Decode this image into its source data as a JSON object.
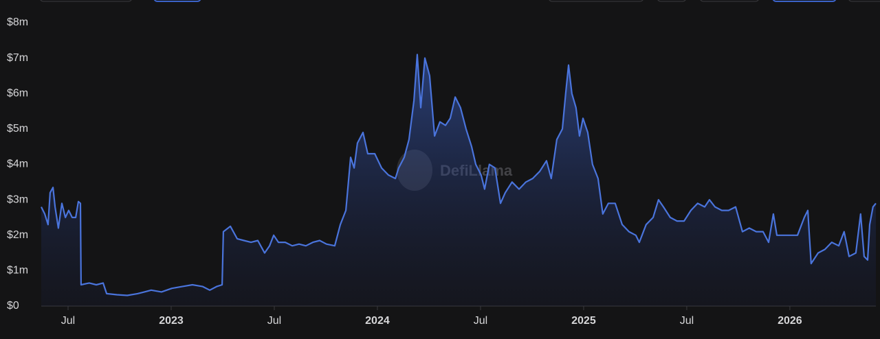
{
  "chart_data": {
    "type": "area",
    "watermark": "DefiLlama",
    "color": "#4a74dc",
    "xlim": [
      2022.37,
      2026.417
    ],
    "xticks": [
      {
        "value": 2022.5,
        "label": "Jul"
      },
      2023,
      {
        "value": 2023.5,
        "label": "Jul"
      },
      2024,
      {
        "value": 2024.5,
        "label": "Jul"
      },
      2025,
      {
        "value": 2025.5,
        "label": "Jul"
      },
      2026
    ],
    "ylim": [
      0,
      8
    ],
    "yticks": [
      {
        "value": 0,
        "label": "$0"
      },
      {
        "value": 1,
        "label": "$1m"
      },
      {
        "value": 2,
        "label": "$2m"
      },
      {
        "value": 3,
        "label": "$3m"
      },
      {
        "value": 4,
        "label": "$4m"
      },
      {
        "value": 5,
        "label": "$5m"
      },
      {
        "value": 6,
        "label": "$6m"
      },
      {
        "value": 7,
        "label": "$7m"
      },
      {
        "value": 8,
        "label": "$8m"
      }
    ],
    "x": [
      2022.37,
      2022.387,
      2022.403,
      2022.413,
      2022.427,
      2022.437,
      2022.453,
      2022.47,
      2022.487,
      2022.503,
      2022.52,
      2022.537,
      2022.55,
      2022.56,
      2022.563,
      2022.603,
      2022.637,
      2022.67,
      2022.687,
      2022.737,
      2022.787,
      2022.837,
      2022.87,
      2022.903,
      2022.953,
      2023.003,
      2023.053,
      2023.103,
      2023.153,
      2023.187,
      2023.22,
      2023.247,
      2023.253,
      2023.287,
      2023.32,
      2023.353,
      2023.387,
      2023.42,
      2023.453,
      2023.477,
      2023.497,
      2023.52,
      2023.553,
      2023.587,
      2023.62,
      2023.653,
      2023.687,
      2023.72,
      2023.753,
      2023.793,
      2023.82,
      2023.847,
      2023.87,
      2023.887,
      2023.903,
      2023.93,
      2023.953,
      2023.987,
      2024.02,
      2024.053,
      2024.087,
      2024.103,
      2024.13,
      2024.153,
      2024.177,
      2024.193,
      2024.21,
      2024.23,
      2024.253,
      2024.277,
      2024.303,
      2024.33,
      2024.353,
      2024.377,
      2024.403,
      2024.43,
      2024.457,
      2024.477,
      2024.503,
      2024.52,
      2024.543,
      2024.57,
      2024.597,
      2024.62,
      2024.653,
      2024.687,
      2024.72,
      2024.753,
      2024.787,
      2024.82,
      2024.843,
      2024.87,
      2024.897,
      2024.913,
      2024.927,
      2024.943,
      2024.963,
      2024.98,
      2024.997,
      2025.02,
      2025.043,
      2025.07,
      2025.093,
      2025.12,
      2025.153,
      2025.187,
      2025.22,
      2025.253,
      2025.27,
      2025.303,
      2025.337,
      2025.363,
      2025.387,
      2025.42,
      2025.453,
      2025.487,
      2025.52,
      2025.553,
      2025.587,
      2025.61,
      2025.637,
      2025.67,
      2025.703,
      2025.737,
      2025.77,
      2025.803,
      2025.837,
      2025.87,
      2025.897,
      2025.92,
      2025.937,
      2025.97,
      2026.003,
      2026.037,
      2026.07,
      2026.087,
      2026.103,
      2026.137,
      2026.17,
      2026.203,
      2026.237,
      2026.263,
      2026.287,
      2026.32,
      2026.343,
      2026.36,
      2026.377,
      2026.387,
      2026.403,
      2026.417
    ],
    "values": [
      2.8,
      2.6,
      2.3,
      3.2,
      3.35,
      2.8,
      2.2,
      2.9,
      2.5,
      2.7,
      2.5,
      2.5,
      2.95,
      2.9,
      0.6,
      0.65,
      0.6,
      0.65,
      0.35,
      0.32,
      0.3,
      0.35,
      0.4,
      0.45,
      0.4,
      0.5,
      0.55,
      0.6,
      0.55,
      0.45,
      0.55,
      0.6,
      2.1,
      2.25,
      1.9,
      1.85,
      1.8,
      1.85,
      1.5,
      1.7,
      2.0,
      1.8,
      1.8,
      1.7,
      1.75,
      1.7,
      1.8,
      1.85,
      1.75,
      1.7,
      2.3,
      2.7,
      4.2,
      3.9,
      4.6,
      4.9,
      4.3,
      4.3,
      3.9,
      3.7,
      3.6,
      3.9,
      4.2,
      4.7,
      5.8,
      7.1,
      5.6,
      7.0,
      6.5,
      4.8,
      5.2,
      5.1,
      5.3,
      5.9,
      5.6,
      5.0,
      4.5,
      4.0,
      3.7,
      3.3,
      4.0,
      3.9,
      2.9,
      3.2,
      3.5,
      3.3,
      3.5,
      3.6,
      3.8,
      4.1,
      3.6,
      4.7,
      5.0,
      6.0,
      6.8,
      6.0,
      5.6,
      4.8,
      5.3,
      4.9,
      4.0,
      3.6,
      2.6,
      2.9,
      2.9,
      2.3,
      2.1,
      2.0,
      1.8,
      2.3,
      2.5,
      3.0,
      2.8,
      2.5,
      2.4,
      2.4,
      2.7,
      2.9,
      2.8,
      3.0,
      2.8,
      2.7,
      2.7,
      2.8,
      2.1,
      2.2,
      2.1,
      2.1,
      1.8,
      2.6,
      2.0,
      2.0,
      2.0,
      2.0,
      2.5,
      2.7,
      1.2,
      1.5,
      1.6,
      1.8,
      1.7,
      2.1,
      1.4,
      1.5,
      2.6,
      1.4,
      1.3,
      2.3,
      2.8,
      2.9
    ]
  }
}
